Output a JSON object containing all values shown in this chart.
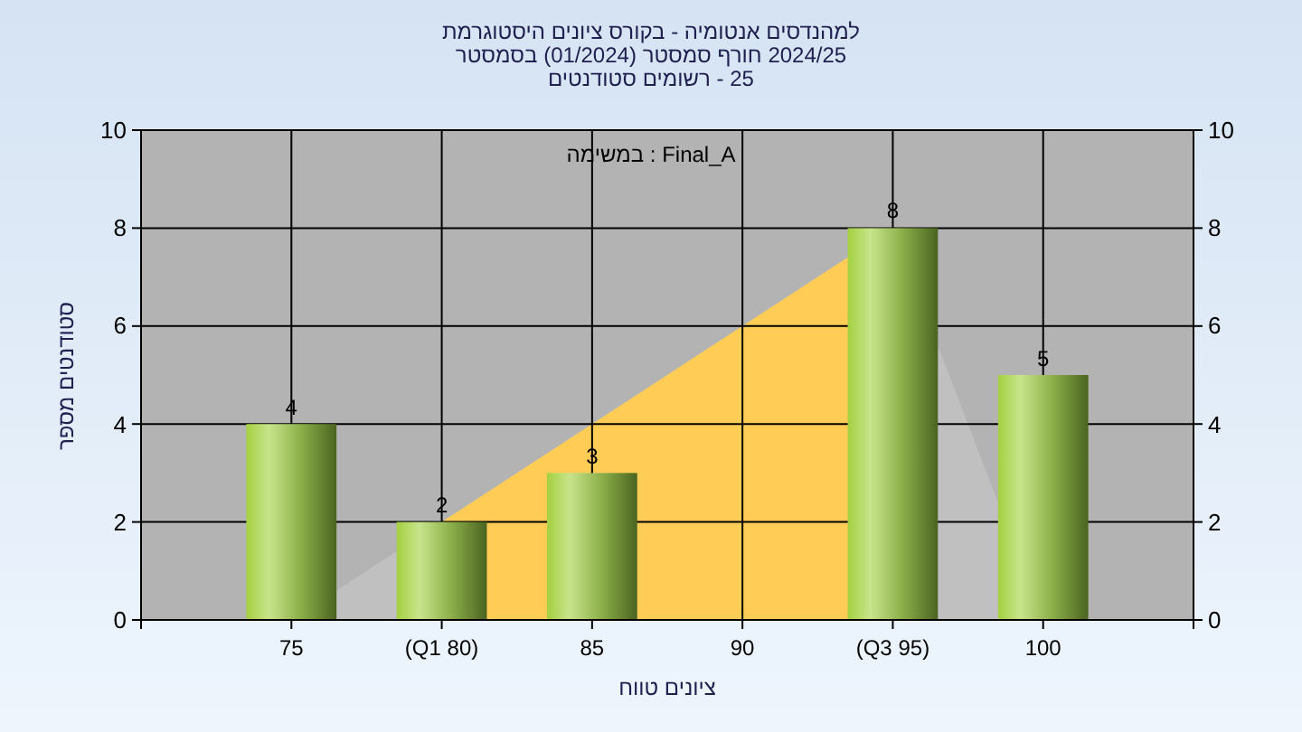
{
  "chart_data": {
    "type": "bar",
    "title": "היסטוגרמת ציונים בקורס - אנטומיה למהנדסים",
    "subtitle": "בסמסטר (01/2024) סמסטר חורף 2024/25\nסטודנטים רשומים - 25",
    "xlabel": "טווח ציונים",
    "ylabel": "מספר סטודנטים",
    "annotations": [
      "במשימה : Final_A"
    ],
    "categories": [
      "75",
      "(Q1 80)",
      "85",
      "90",
      "(Q3 95)",
      "100"
    ],
    "series": [
      {
        "type": "area",
        "color": "#c0c0c0",
        "values": [
          0,
          2,
          4,
          6,
          8,
          0
        ]
      },
      {
        "type": "area",
        "color": "#ffcc55",
        "values": [
          null,
          2,
          4,
          6,
          8,
          null
        ]
      },
      {
        "color": "#8db04a",
        "values": [
          4,
          2,
          3,
          0,
          8,
          5
        ],
        "value_labels": [
          "4",
          "2",
          "3",
          null,
          "8",
          "5"
        ]
      }
    ],
    "ylim": [
      0,
      10
    ],
    "yticks": [
      0,
      2,
      4,
      6,
      8,
      10
    ],
    "y2lim": [
      0,
      10
    ],
    "y2ticks": [
      0,
      2,
      4,
      6,
      8,
      10
    ],
    "grid": true
  }
}
